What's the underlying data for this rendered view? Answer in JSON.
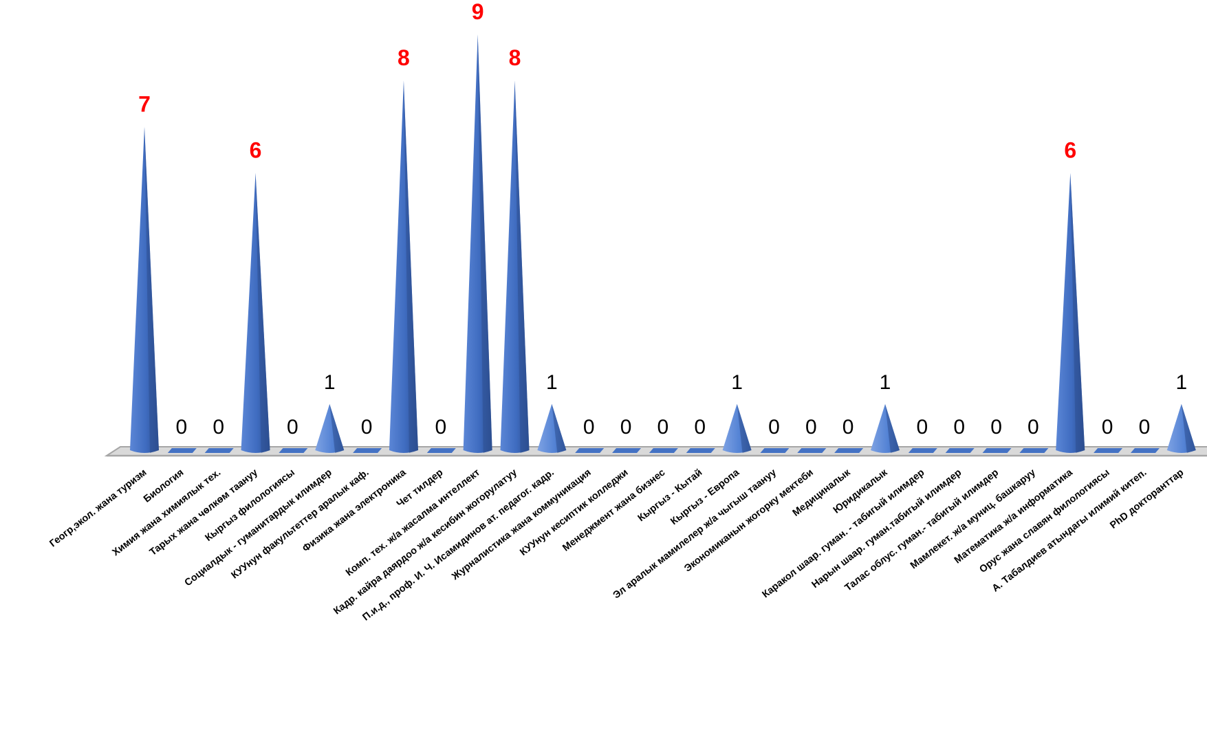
{
  "chart_data": {
    "type": "bar",
    "style": "3d-cone",
    "title": "",
    "xlabel": "",
    "ylabel": "",
    "ylim": [
      0,
      9
    ],
    "grid": false,
    "legend": "none",
    "categories": [
      "Геогр,экол. жана туризм",
      "Биология",
      "Химия жана химиялык тех.",
      "Тарых жана чөлкөм таануу",
      "Кыргыз филологиясы",
      "Социалдык - гуманитардык илимдер",
      "КУУнун факультеттер аралык каф.",
      "Физика жана электроника",
      "Чет тилдер",
      "Комп. тех. ж/а жасалма интеллект",
      "Кадр. кайра даярдоо ж/а кесибин жогорулатуу",
      "П.и.д., проф. И. Ч. Исамидинов ат. педагог. кадр.",
      "Журналистика жана коммуникация",
      "КУУнун кесиптик колледжи",
      "Менеджмент жана бизнес",
      "Кыргыз - Кытай",
      "Кыргыз - Европа",
      "Эл аралык мамилелер ж/а чыгыш таануу",
      "Экономиканын жогорку мектеби",
      "Медициналык",
      "Юридикалык",
      "Каракол шаар. гуман. - табигый илимдер",
      "Нарын шаар. гуман.табигый илимдер",
      "Талас облус. гуман.- табигый илимдер",
      "Мамлекет. ж/а муниц. башкаруу",
      "Математика ж/а информатика",
      "Орус жана славян филологиясы",
      "А. Табалдиев атындагы илимий китеп.",
      "PhD докторанттар"
    ],
    "values": [
      7,
      0,
      0,
      6,
      0,
      1,
      0,
      8,
      0,
      9,
      8,
      1,
      0,
      0,
      0,
      0,
      1,
      0,
      0,
      0,
      1,
      0,
      0,
      0,
      0,
      6,
      0,
      0,
      1
    ],
    "data_labels": [
      "7",
      "0",
      "0",
      "6",
      "0",
      "1",
      "0",
      "8",
      "0",
      "9",
      "8",
      "1",
      "0",
      "0",
      "0",
      "0",
      "1",
      "0",
      "0",
      "0",
      "1",
      "0",
      "0",
      "0",
      "0",
      "6",
      "0",
      "0",
      "1"
    ],
    "colors": {
      "cone_dark": "#2e4f8f",
      "cone_mid": "#4472c4",
      "cone_light": "#6f95d8",
      "highlight_label": "#ff0000",
      "normal_label": "#000000",
      "floor": "#d9d9d9",
      "floor_edge": "#a6a6a6",
      "axis_text": "#000000"
    },
    "highlight_threshold": 6
  }
}
